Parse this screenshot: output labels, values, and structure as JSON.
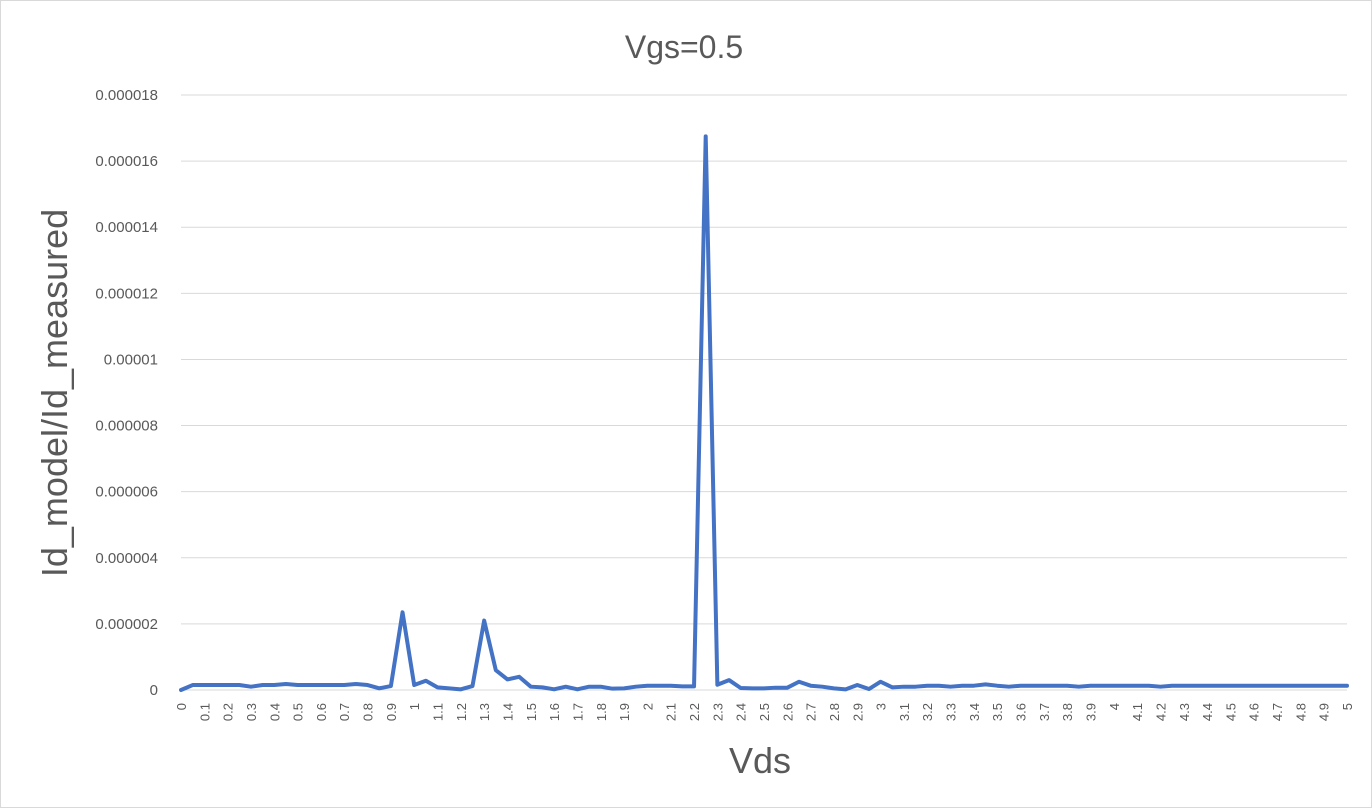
{
  "chart_data": {
    "type": "line",
    "title": "Vgs=0.5",
    "xlabel": "Vds",
    "ylabel": "Id_model/Id_measured",
    "ylim": [
      0,
      1.8e-05
    ],
    "y_ticks": [
      "0",
      "0.000002",
      "0.000004",
      "0.000006",
      "0.000008",
      "0.00001",
      "0.000012",
      "0.000014",
      "0.000016",
      "0.000018"
    ],
    "x_tick_labels": [
      "0",
      "0.1",
      "0.2",
      "0.3",
      "0.4",
      "0.5",
      "0.6",
      "0.7",
      "0.8",
      "0.9",
      "1",
      "1.1",
      "1.2",
      "1.3",
      "1.4",
      "1.5",
      "1.6",
      "1.7",
      "1.8",
      "1.9",
      "2",
      "2.1",
      "2.2",
      "2.3",
      "2.4",
      "2.5",
      "2.6",
      "2.7",
      "2.8",
      "2.9",
      "3",
      "3.1",
      "3.2",
      "3.3",
      "3.4",
      "3.5",
      "3.6",
      "3.7",
      "3.8",
      "3.9",
      "4",
      "4.1",
      "4.2",
      "4.3",
      "4.4",
      "4.5",
      "4.6",
      "4.7",
      "4.8",
      "4.9",
      "5"
    ],
    "grid": true,
    "legend": "none",
    "series_color": "#4472c4",
    "series": [
      {
        "x": [
          0,
          0.05,
          0.1,
          0.15,
          0.2,
          0.25,
          0.3,
          0.35,
          0.4,
          0.45,
          0.5,
          0.55,
          0.6,
          0.65,
          0.7,
          0.75,
          0.8,
          0.85,
          0.9,
          0.95,
          1,
          1.05,
          1.1,
          1.15,
          1.2,
          1.25,
          1.3,
          1.35,
          1.4,
          1.45,
          1.5,
          1.55,
          1.6,
          1.65,
          1.7,
          1.75,
          1.8,
          1.85,
          1.9,
          1.95,
          2,
          2.05,
          2.1,
          2.15,
          2.2,
          2.25,
          2.3,
          2.35,
          2.4,
          2.45,
          2.5,
          2.55,
          2.6,
          2.65,
          2.7,
          2.75,
          2.8,
          2.85,
          2.9,
          2.95,
          3,
          3.05,
          3.1,
          3.15,
          3.2,
          3.25,
          3.3,
          3.35,
          3.4,
          3.45,
          3.5,
          3.55,
          3.6,
          3.65,
          3.7,
          3.75,
          3.8,
          3.85,
          3.9,
          3.95,
          4,
          4.05,
          4.1,
          4.15,
          4.2,
          4.25,
          4.3,
          4.35,
          4.4,
          4.45,
          4.5,
          4.55,
          4.6,
          4.65,
          4.7,
          4.75,
          4.8,
          4.85,
          4.9,
          4.95,
          5
        ],
        "values": [
          0,
          1.5e-07,
          1.5e-07,
          1.5e-07,
          1.5e-07,
          1.5e-07,
          1e-07,
          1.5e-07,
          1.5e-07,
          1.8e-07,
          1.5e-07,
          1.5e-07,
          1.5e-07,
          1.5e-07,
          1.5e-07,
          1.8e-07,
          1.5e-07,
          5e-08,
          1.2e-07,
          2.35e-06,
          1.5e-07,
          2.8e-07,
          8e-08,
          5e-08,
          2e-08,
          1.2e-07,
          2.1e-06,
          6e-07,
          3.2e-07,
          4e-07,
          1e-07,
          8e-08,
          2e-08,
          1e-07,
          2e-08,
          1e-07,
          1e-07,
          4e-08,
          5e-08,
          1e-07,
          1.3e-07,
          1.3e-07,
          1.3e-07,
          1.1e-07,
          1.1e-07,
          1.675e-05,
          1.6e-07,
          3e-07,
          6e-08,
          5e-08,
          5e-08,
          7e-08,
          7e-08,
          2.5e-07,
          1.3e-07,
          1e-07,
          5e-08,
          2e-08,
          1.5e-07,
          3e-08,
          2.5e-07,
          8e-08,
          1e-07,
          1e-07,
          1.3e-07,
          1.3e-07,
          1e-07,
          1.3e-07,
          1.3e-07,
          1.7e-07,
          1.3e-07,
          1e-07,
          1.3e-07,
          1.3e-07,
          1.3e-07,
          1.3e-07,
          1.3e-07,
          1e-07,
          1.3e-07,
          1.3e-07,
          1.3e-07,
          1.3e-07,
          1.3e-07,
          1.3e-07,
          1e-07,
          1.3e-07,
          1.3e-07,
          1.3e-07,
          1.3e-07,
          1.3e-07,
          1.3e-07,
          1.3e-07,
          1.3e-07,
          1.3e-07,
          1.3e-07,
          1.3e-07,
          1.3e-07,
          1.3e-07,
          1.3e-07,
          1.3e-07,
          1.3e-07
        ]
      }
    ]
  }
}
